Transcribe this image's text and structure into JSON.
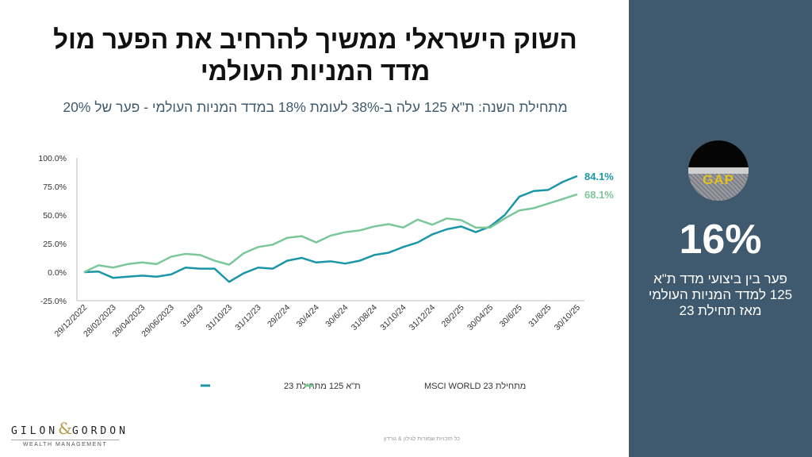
{
  "header": {
    "title_line1": "השוק הישראלי ממשיך להרחיב את הפער מול",
    "title_line2": "מדד המניות העולמי",
    "subtitle": "מתחילת השנה: ת\"א 125 עלה ב-38% לעומת 18% במדד המניות העולמי - פער של  20%"
  },
  "side_panel": {
    "image_text": "GAP",
    "big_number": "16%",
    "description_line1": "פער בין ביצועי מדד ת\"א",
    "description_line2": "125 למדד המניות העולמי",
    "description_line3": "מאז תחילת 23"
  },
  "footer": {
    "logo_main_left": "GILON",
    "logo_amp": "&",
    "logo_main_right": "GORDON",
    "logo_sub": "WEALTH MANAGEMENT",
    "copyright": "כל הזכויות שמורות לגילון & גורדון"
  },
  "colors": {
    "ta125": "#1b96a8",
    "msci": "#7cc79a",
    "panel": "#3f5a6e"
  },
  "chart_data": {
    "type": "line",
    "title": "",
    "xlabel": "",
    "ylabel": "",
    "ylim": [
      -25,
      100
    ],
    "yticks": [
      100,
      75,
      50,
      25,
      0,
      -25
    ],
    "ytick_labels": [
      "100.0%",
      "75.0%",
      "50.0%",
      "25.0%",
      "0.0%",
      "-25.0%"
    ],
    "x_tick_labels": [
      "29/12/2022",
      "28/02/2023",
      "28/04/2023",
      "29/06/2023",
      "31/8/23",
      "31/10/23",
      "31/12/23",
      "29/2/24",
      "30/4/24",
      "30/6/24",
      "31/08/24",
      "31/10/24",
      "31/12/24",
      "28/2/25",
      "30/04/25",
      "30/6/25",
      "31/8/25",
      "30/10/25"
    ],
    "x_tick_every": 2,
    "legend_position": "bottom",
    "series": [
      {
        "name": "ת\"א 125 מתחילת 23",
        "color": "#1b96a8",
        "end_label": "84.1%",
        "values": [
          0,
          0.5,
          -5,
          -4,
          -3,
          -4,
          -2,
          4,
          3,
          3,
          -8.5,
          -1,
          4,
          3,
          10,
          12.5,
          8.5,
          9.5,
          7.5,
          10,
          15,
          17,
          22,
          26,
          33,
          37.5,
          40,
          35,
          40,
          50,
          66,
          71,
          72,
          79,
          84.1
        ]
      },
      {
        "name": "MSCI WORLD 23 מתחילת",
        "color": "#7cc79a",
        "end_label": "68.1%",
        "values": [
          0,
          6,
          4,
          7,
          8.5,
          7,
          13.5,
          16,
          15,
          10,
          6.5,
          16.5,
          22,
          24,
          30,
          31.5,
          26,
          32,
          35,
          36.5,
          40,
          42,
          39,
          46,
          41.5,
          47,
          45.5,
          39,
          39,
          47,
          54,
          56,
          60,
          64,
          68.1
        ]
      }
    ]
  }
}
